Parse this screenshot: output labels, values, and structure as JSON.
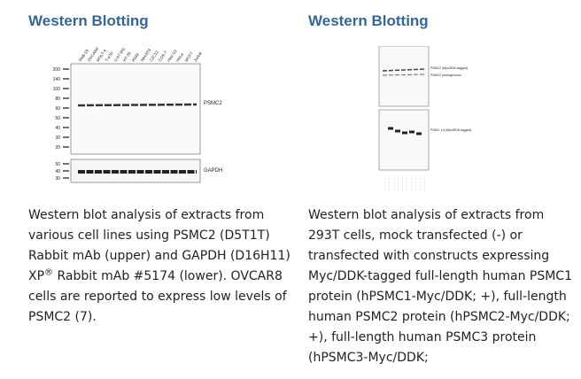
{
  "left": {
    "heading": "Western Blotting",
    "blot": {
      "lanes": [
        "SNB-19",
        "OVCAR8",
        "MOLT-4",
        "T-47D",
        "U-87 MG",
        "HT-29",
        "A549",
        "NIH/3T3",
        "C2C12",
        "COS-7",
        "Hep G2",
        "HeLa",
        "MCF7",
        "Jurkat"
      ],
      "markers_upper": [
        "200",
        "140",
        "100",
        "80",
        "60",
        "50",
        "40",
        "30",
        "20"
      ],
      "markers_lower": [
        "50",
        "40",
        "30"
      ],
      "label_upper": "PSMC2",
      "label_lower": "GAPDH"
    },
    "caption": {
      "before": "Western blot analysis of extracts from various cell lines using PSMC2 (D5T1T) Rabbit mAb (upper) and GAPDH (D16H11) XP",
      "sup": "®",
      "after": " Rabbit mAb #5174 (lower). OVCAR8 cells are reported to express low levels of PSMC2 (7)."
    }
  },
  "right": {
    "heading": "Western Blotting",
    "blot": {
      "label_upper_1": "PSMC2 (Myc/DDK-tagged)",
      "label_upper_2": "PSMC2 (endogenous)",
      "label_lower": "PSMC 1-5 (Myc/DDK-tagged)"
    },
    "caption": "Western blot analysis of extracts from 293T cells, mock transfected (-) or transfected with constructs expressing Myc/DDK-tagged full-length human PSMC1 protein (hPSMC1-Myc/DDK; +), full-length human PSMC2 protein (hPSMC2-Myc/DDK; +), full-length human PSMC3 protein (hPSMC3-Myc/DDK;"
  }
}
